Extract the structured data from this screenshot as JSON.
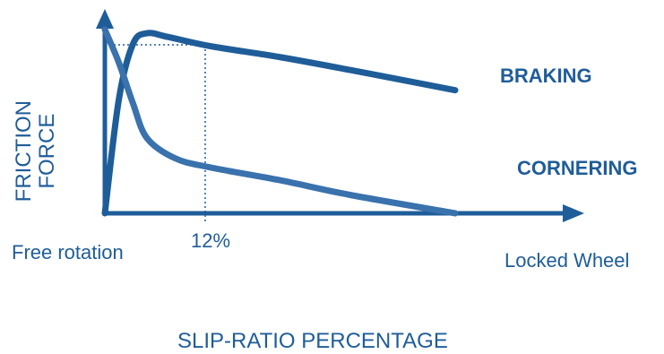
{
  "colors": {
    "ink": "#1f5d99",
    "cornering_curve": "#3a72ad"
  },
  "axes": {
    "y_label_line1": "FRICTION",
    "y_label_line2": "FORCE",
    "x_title": "SLIP-RATIO PERCENTAGE",
    "x_start_label": "Free rotation",
    "x_end_label": "Locked Wheel",
    "x_marker_label": "12%"
  },
  "series_labels": {
    "braking": "BRAKING",
    "cornering": "CORNERING"
  },
  "chart_data": {
    "type": "line",
    "xlabel": "SLIP-RATIO PERCENTAGE",
    "ylabel": "FRICTION FORCE",
    "marker_x": 12,
    "series": [
      {
        "name": "BRAKING",
        "x": [
          0,
          4,
          8,
          12,
          18,
          30,
          50,
          70,
          100
        ],
        "y": [
          0,
          0.62,
          0.92,
          0.98,
          0.96,
          0.91,
          0.85,
          0.78,
          0.67
        ]
      },
      {
        "name": "CORNERING",
        "x": [
          0,
          4,
          8,
          12,
          20,
          30,
          50,
          70,
          100
        ],
        "y": [
          1.0,
          0.82,
          0.6,
          0.41,
          0.3,
          0.25,
          0.18,
          0.1,
          0.0
        ]
      }
    ]
  }
}
